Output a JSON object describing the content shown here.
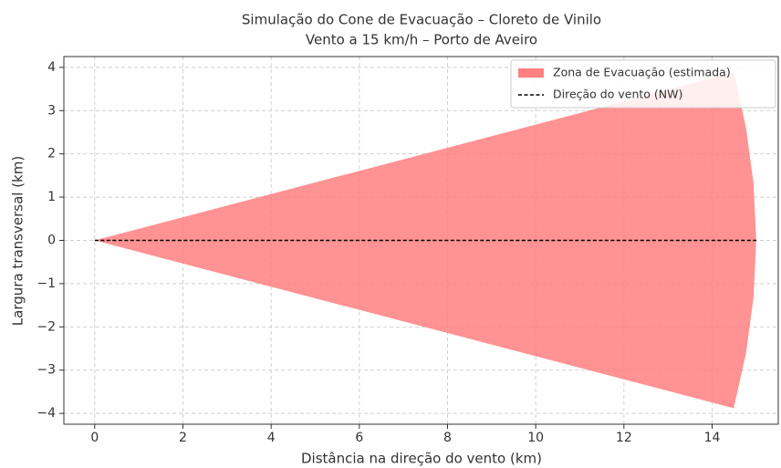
{
  "chart_data": {
    "type": "area",
    "title": "Simulação do Cone de Evacuação – Cloreto de Vinilo",
    "subtitle": "Vento a 15 km/h – Porto de Aveiro",
    "xlabel": "Distância na direção do vento (km)",
    "ylabel": "Largura transversal (km)",
    "xlim": [
      -0.7,
      15.5
    ],
    "ylim": [
      -4.25,
      4.25
    ],
    "xticks": [
      0,
      2,
      4,
      6,
      8,
      10,
      12,
      14
    ],
    "yticks": [
      {
        "value": -4,
        "label": "−4"
      },
      {
        "value": -3,
        "label": "−3"
      },
      {
        "value": -2,
        "label": "−2"
      },
      {
        "value": -1,
        "label": "−1"
      },
      0,
      1,
      2,
      3,
      4
    ],
    "grid": true,
    "legend": "upper right",
    "series": [
      {
        "name": "Zona de Evacuação (estimada)",
        "color": "#ff8080",
        "style": "fill",
        "x": [
          0,
          14.49,
          14.77,
          14.94,
          15,
          14.94,
          14.77,
          14.49
        ],
        "values": [
          0,
          -3.88,
          -2.6,
          -1.31,
          0,
          1.31,
          2.6,
          3.88
        ]
      },
      {
        "name": "Direção do vento (NW)",
        "color": "#000000",
        "style": "dashed",
        "x": [
          0,
          15
        ],
        "values": [
          0,
          0
        ]
      }
    ]
  }
}
